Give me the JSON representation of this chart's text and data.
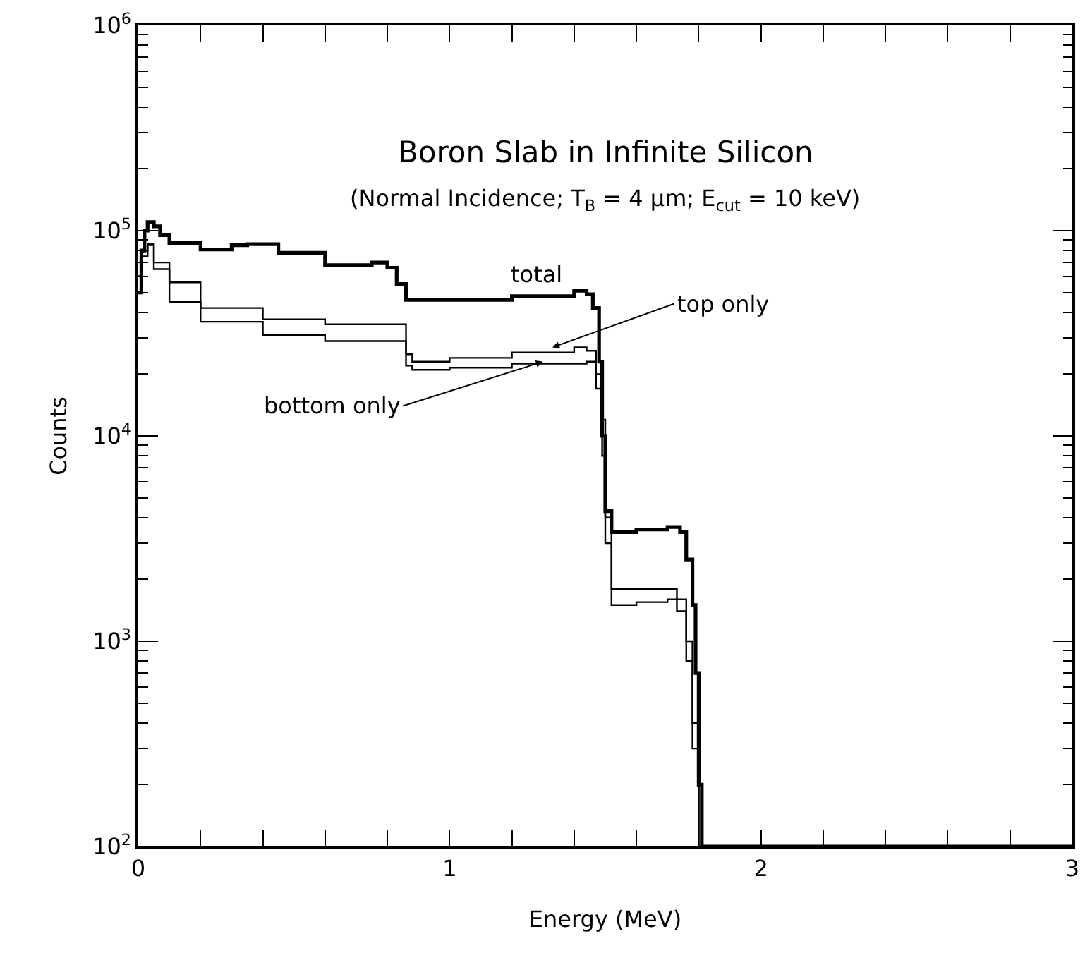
{
  "chart_data": {
    "type": "step",
    "title": "Boron Slab in Infinite Silicon",
    "subtitle": "(Normal Incidence; T$_{B}$ = 4 μm; E$_{cut}$ = 10 keV)",
    "xlabel": "Energy (MeV)",
    "ylabel": "Counts",
    "log": "y",
    "xlim": [
      0,
      3
    ],
    "ylim": [
      100,
      1000000
    ],
    "xticks": [
      0,
      {
        "value": 0.2,
        "label": null
      },
      {
        "value": 0.4,
        "label": null
      },
      {
        "value": 0.6,
        "label": null
      },
      {
        "value": 0.8,
        "label": null
      },
      1,
      {
        "value": 1.2,
        "label": null
      },
      {
        "value": 1.4,
        "label": null
      },
      {
        "value": 1.6,
        "label": null
      },
      {
        "value": 1.8,
        "label": null
      },
      2,
      {
        "value": 2.2,
        "label": null
      },
      {
        "value": 2.4,
        "label": null
      },
      {
        "value": 2.6,
        "label": null
      },
      {
        "value": 2.8,
        "label": null
      },
      3
    ],
    "yticks": [
      {
        "value": 100,
        "label": "10$^{2}$"
      },
      {
        "value": 1000,
        "label": "10$^{3}$"
      },
      {
        "value": 10000,
        "label": "10$^{4}$"
      },
      {
        "value": 100000,
        "label": "10$^{5}$"
      },
      {
        "value": 1000000,
        "label": "10$^{6}$"
      }
    ],
    "series": [
      {
        "color": "#000000",
        "x": [
          0,
          0.01,
          0.02,
          0.03,
          0.05,
          0.07,
          0.1,
          0.2,
          0.3,
          0.35,
          0.45,
          0.6,
          0.75,
          0.8,
          0.83,
          0.86,
          1.0,
          1.2,
          1.4,
          1.44,
          1.46,
          1.48,
          1.49,
          1.5,
          1.52,
          1.6,
          1.7,
          1.74,
          1.76,
          1.78,
          1.79,
          1.8,
          1.81,
          3
        ],
        "values": [
          50000,
          80000,
          100000,
          110000,
          105000,
          95000,
          87000,
          81000,
          85000,
          86000,
          78000,
          68000,
          70000,
          66000,
          55000,
          46000,
          46000,
          48000,
          51000,
          49000,
          42000,
          23000,
          10000,
          4300,
          3400,
          3500,
          3600,
          3400,
          2500,
          1500,
          700,
          200,
          100,
          100
        ]
      },
      {
        "color": "#000000",
        "x": [
          0,
          0.01,
          0.03,
          0.05,
          0.1,
          0.2,
          0.4,
          0.6,
          0.82,
          0.86,
          0.88,
          1.0,
          1.2,
          1.4,
          1.44,
          1.47,
          1.49,
          1.5,
          1.52,
          1.6,
          1.7,
          1.73,
          1.76,
          1.78,
          1.8,
          3
        ],
        "values": [
          60000,
          80000,
          86000,
          70000,
          56000,
          42000,
          37000,
          35000,
          35000,
          25000,
          23000,
          24000,
          25500,
          27000,
          26000,
          20000,
          12000,
          4000,
          1800,
          1800,
          1800,
          1600,
          1000,
          400,
          100,
          100
        ]
      },
      {
        "color": "#000000",
        "x": [
          0,
          0.01,
          0.03,
          0.05,
          0.1,
          0.2,
          0.4,
          0.6,
          0.82,
          0.86,
          0.88,
          1.0,
          1.2,
          1.44,
          1.47,
          1.49,
          1.5,
          1.52,
          1.6,
          1.7,
          1.73,
          1.76,
          1.78,
          1.8,
          3
        ],
        "values": [
          50000,
          75000,
          85000,
          65000,
          45000,
          36000,
          31000,
          29000,
          29000,
          22000,
          21000,
          21500,
          22500,
          23000,
          17000,
          8000,
          3000,
          1500,
          1550,
          1600,
          1400,
          800,
          300,
          100,
          100
        ]
      }
    ],
    "annotations": [
      {
        "text": "total",
        "x": 1.28,
        "y": 48000
      },
      {
        "text": "top only",
        "x": 1.33,
        "y": 27000
      },
      {
        "text": "bottom only",
        "x": 1.3,
        "y": 23000
      }
    ]
  }
}
